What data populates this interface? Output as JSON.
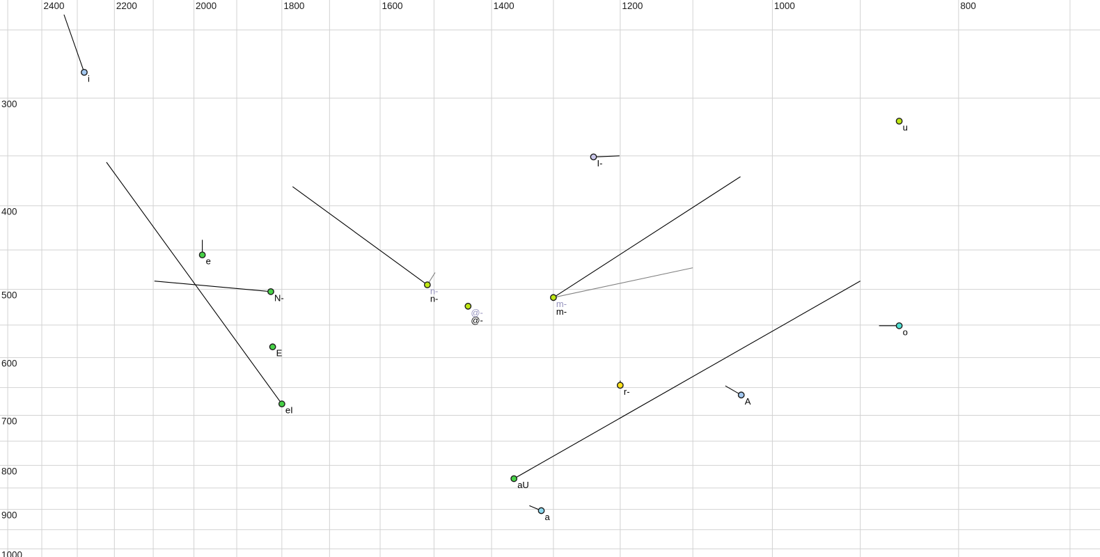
{
  "chart_data": {
    "type": "scatter",
    "title": "",
    "description_keys": {
      "x": "F2_Hz",
      "y": "F1_Hz"
    },
    "x_axis": {
      "tick_labels": [
        "2400",
        "2200",
        "2000",
        "1800",
        "1600",
        "1400",
        "1200",
        "1000",
        "800"
      ],
      "tick_values": [
        2400,
        2200,
        2000,
        1800,
        1600,
        1400,
        1200,
        1000,
        800
      ],
      "gridline_values": [
        2500,
        2400,
        2300,
        2200,
        2100,
        2000,
        1900,
        1800,
        1700,
        1600,
        1500,
        1400,
        1300,
        1200,
        1100,
        1000,
        900,
        800,
        700
      ],
      "scale": "log",
      "direction": "decreasing-to-right",
      "range": [
        2524,
        675
      ],
      "label_position": "top"
    },
    "y_axis": {
      "tick_labels": [
        "300",
        "400",
        "500",
        "600",
        "700",
        "800",
        "900",
        "1000"
      ],
      "tick_values": [
        300,
        400,
        500,
        600,
        700,
        800,
        900,
        1000
      ],
      "gridline_values": [
        250,
        300,
        350,
        400,
        450,
        500,
        550,
        600,
        650,
        700,
        750,
        800,
        850,
        900,
        950,
        1000
      ],
      "scale": "log",
      "direction": "increasing-down",
      "range": [
        228,
        1007
      ],
      "label_position": "left"
    },
    "grid": true,
    "legend": false,
    "points": [
      {
        "label": "i",
        "gray_label": null,
        "f2": 2281,
        "f1": 280,
        "color": "blue",
        "trails": [
          {
            "f2": 2337,
            "f1": 240,
            "color": "black"
          }
        ]
      },
      {
        "label": "u",
        "gray_label": null,
        "f2": 859,
        "f1": 319,
        "color": "chartreuse",
        "trails": []
      },
      {
        "label": "I-",
        "gray_label": null,
        "f2": 1239,
        "f1": 351,
        "color": "lavender",
        "trails": [
          {
            "f2": 1201,
            "f1": 350,
            "color": "black"
          }
        ]
      },
      {
        "label": "e",
        "gray_label": null,
        "f2": 1980,
        "f1": 456,
        "color": "green",
        "trails": [
          {
            "f2": 1980,
            "f1": 438,
            "color": "black"
          }
        ]
      },
      {
        "label": "N-",
        "gray_label": null,
        "f2": 1824,
        "f1": 503,
        "color": "green",
        "trails": [
          {
            "f2": 2097,
            "f1": 489,
            "color": "black"
          }
        ]
      },
      {
        "label": "n-",
        "gray_label": "n-",
        "f2": 1512,
        "f1": 494,
        "color": "chartreuse",
        "trails": [
          {
            "f2": 1777,
            "f1": 380,
            "color": "black"
          },
          {
            "f2": 1498,
            "f1": 478,
            "color": "gray"
          }
        ]
      },
      {
        "label": "@-",
        "gray_label": "@-",
        "f2": 1440,
        "f1": 523,
        "color": "chartreuse",
        "trails": []
      },
      {
        "label": "m-",
        "gray_label": "m-",
        "f2": 1300,
        "f1": 511,
        "color": "chartreuse",
        "trails": [
          {
            "f2": 1039,
            "f1": 370,
            "color": "black"
          },
          {
            "f2": 1100,
            "f1": 472,
            "color": "gray"
          }
        ]
      },
      {
        "label": "E",
        "gray_label": null,
        "f2": 1820,
        "f1": 583,
        "color": "green",
        "trails": []
      },
      {
        "label": "eI",
        "gray_label": null,
        "f2": 1800,
        "f1": 679,
        "color": "green",
        "trails": [
          {
            "f2": 2221,
            "f1": 356,
            "color": "black"
          }
        ]
      },
      {
        "label": "o",
        "gray_label": null,
        "f2": 859,
        "f1": 551,
        "color": "turquoise",
        "trails": [
          {
            "f2": 880,
            "f1": 551,
            "color": "black"
          }
        ]
      },
      {
        "label": "r-",
        "gray_label": null,
        "f2": 1200,
        "f1": 646,
        "color": "yellow",
        "trails": [
          {
            "f2": 1200,
            "f1": 638,
            "color": "black"
          }
        ]
      },
      {
        "label": "A",
        "gray_label": null,
        "f2": 1038,
        "f1": 663,
        "color": "blue",
        "trails": [
          {
            "f2": 1058,
            "f1": 647,
            "color": "black"
          }
        ]
      },
      {
        "label": "aU",
        "gray_label": null,
        "f2": 1363,
        "f1": 829,
        "color": "green",
        "trails": [
          {
            "f2": 900,
            "f1": 489,
            "color": "black"
          }
        ]
      },
      {
        "label": "a",
        "gray_label": null,
        "f2": 1319,
        "f1": 903,
        "color": "cyan",
        "trails": [
          {
            "f2": 1338,
            "f1": 891,
            "color": "black"
          }
        ]
      }
    ]
  },
  "colors": {
    "background": "#ffffff",
    "gridline": "#d2d2d2",
    "tick_text": "#1a1a1a",
    "label_text": "#000000",
    "gray_label_text": "#9592bd",
    "trail_black": "#000000",
    "trail_gray": "#808080",
    "point_outline": "#1c1c1c",
    "point_fills": {
      "blue": "#a3c8f0",
      "lavender": "#c9c6ea",
      "green": "#47d147",
      "chartreuse": "#bfe714",
      "yellow": "#ffe21a",
      "turquoise": "#4fe0d2",
      "cyan": "#8ed8ee"
    }
  }
}
